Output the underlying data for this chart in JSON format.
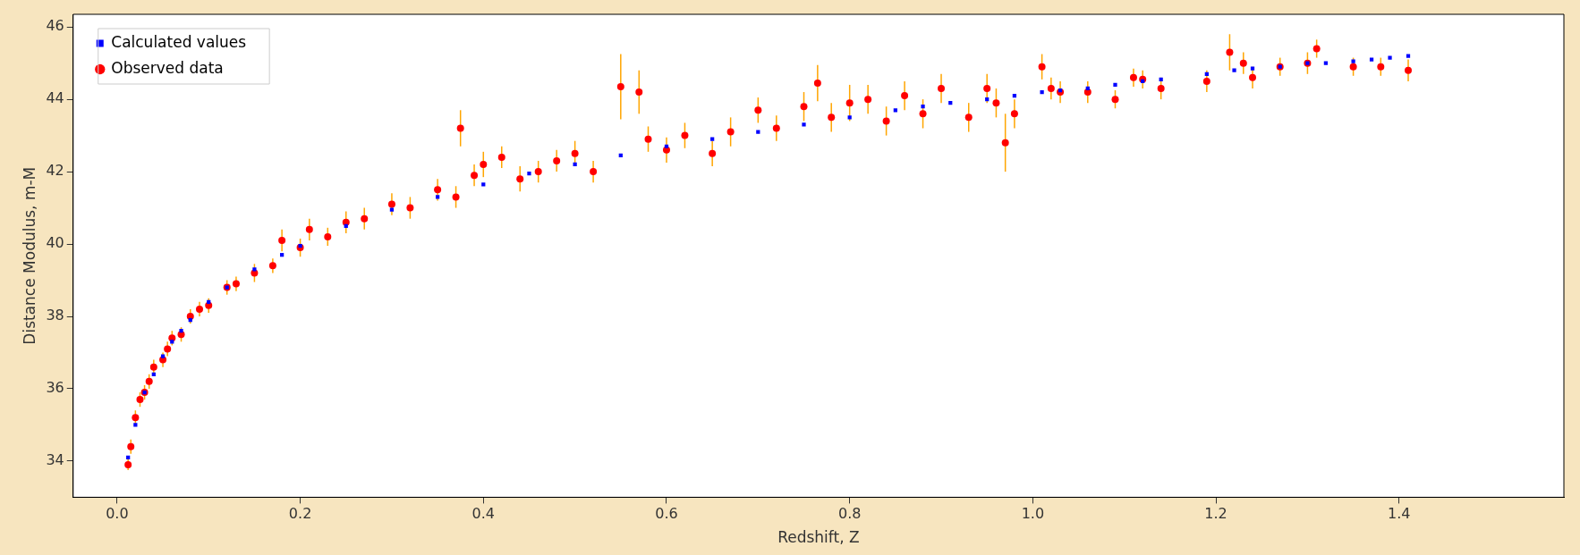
{
  "chart_data": {
    "type": "scatter",
    "xlabel": "Redshift, Z",
    "ylabel": "Distance Modulus, m-M",
    "xlim": [
      -0.048,
      1.58
    ],
    "ylim": [
      33,
      46.35
    ],
    "xticks": [
      {
        "value": 0,
        "label": "0.0"
      },
      {
        "value": 0.2,
        "label": "0.2"
      },
      {
        "value": 0.4,
        "label": "0.4"
      },
      {
        "value": 0.6,
        "label": "0.6"
      },
      {
        "value": 0.8,
        "label": "0.8"
      },
      {
        "value": 1,
        "label": "1.0"
      },
      {
        "value": 1.2,
        "label": "1.2"
      },
      {
        "value": 1.4,
        "label": "1.4"
      }
    ],
    "yticks": [
      34,
      36,
      38,
      40,
      42,
      44,
      46
    ],
    "grid": false,
    "legend": "top left",
    "series": [
      {
        "name": "Calculated values",
        "color": "#0000ff",
        "marker": "square",
        "x": [
          0.012,
          0.02,
          0.03,
          0.04,
          0.05,
          0.06,
          0.07,
          0.08,
          0.1,
          0.12,
          0.15,
          0.18,
          0.2,
          0.25,
          0.3,
          0.35,
          0.4,
          0.45,
          0.5,
          0.55,
          0.6,
          0.65,
          0.7,
          0.75,
          0.8,
          0.85,
          0.88,
          0.91,
          0.95,
          0.98,
          1.01,
          1.03,
          1.06,
          1.09,
          1.12,
          1.14,
          1.19,
          1.22,
          1.24,
          1.27,
          1.3,
          1.32,
          1.35,
          1.37,
          1.39,
          1.41
        ],
        "values": [
          34.1,
          35.0,
          35.9,
          36.4,
          36.9,
          37.3,
          37.6,
          37.9,
          38.4,
          38.8,
          39.3,
          39.7,
          39.95,
          40.5,
          40.95,
          41.3,
          41.65,
          41.95,
          42.2,
          42.45,
          42.7,
          42.9,
          43.1,
          43.3,
          43.5,
          43.7,
          43.8,
          43.9,
          44.0,
          44.1,
          44.2,
          44.25,
          44.3,
          44.4,
          44.5,
          44.55,
          44.7,
          44.8,
          44.85,
          44.9,
          45.0,
          45.0,
          45.05,
          45.1,
          45.15,
          45.2
        ]
      },
      {
        "name": "Observed data",
        "color": "#ff0000",
        "marker": "circle",
        "x": [
          0.012,
          0.015,
          0.02,
          0.025,
          0.03,
          0.035,
          0.04,
          0.05,
          0.055,
          0.06,
          0.07,
          0.08,
          0.09,
          0.1,
          0.12,
          0.13,
          0.15,
          0.17,
          0.18,
          0.2,
          0.21,
          0.23,
          0.25,
          0.27,
          0.3,
          0.32,
          0.35,
          0.37,
          0.375,
          0.39,
          0.4,
          0.42,
          0.44,
          0.46,
          0.48,
          0.5,
          0.52,
          0.55,
          0.57,
          0.58,
          0.6,
          0.62,
          0.65,
          0.67,
          0.7,
          0.72,
          0.75,
          0.765,
          0.78,
          0.8,
          0.82,
          0.84,
          0.86,
          0.88,
          0.9,
          0.93,
          0.95,
          0.96,
          0.97,
          0.98,
          1.01,
          1.02,
          1.03,
          1.06,
          1.09,
          1.11,
          1.12,
          1.14,
          1.19,
          1.215,
          1.23,
          1.24,
          1.27,
          1.3,
          1.31,
          1.35,
          1.38,
          1.41
        ],
        "values": [
          33.9,
          34.4,
          35.2,
          35.7,
          35.9,
          36.2,
          36.6,
          36.8,
          37.1,
          37.4,
          37.5,
          38.0,
          38.2,
          38.3,
          38.8,
          38.9,
          39.2,
          39.4,
          40.1,
          39.9,
          40.4,
          40.2,
          40.6,
          40.7,
          41.1,
          41.0,
          41.5,
          41.3,
          43.2,
          41.9,
          42.2,
          42.4,
          41.8,
          42.0,
          42.3,
          42.5,
          42.0,
          44.35,
          44.2,
          42.9,
          42.6,
          43.0,
          42.5,
          43.1,
          43.7,
          43.2,
          43.8,
          44.45,
          43.5,
          43.9,
          44.0,
          43.4,
          44.1,
          43.6,
          44.3,
          43.5,
          44.3,
          43.9,
          42.8,
          43.6,
          44.9,
          44.3,
          44.2,
          44.2,
          44.0,
          44.6,
          44.55,
          44.3,
          44.5,
          45.3,
          45.0,
          44.6,
          44.9,
          45.0,
          45.4,
          44.9,
          44.9,
          44.8
        ],
        "errors": [
          0.15,
          0.2,
          0.2,
          0.2,
          0.2,
          0.2,
          0.2,
          0.2,
          0.2,
          0.2,
          0.2,
          0.2,
          0.2,
          0.2,
          0.2,
          0.2,
          0.25,
          0.2,
          0.3,
          0.25,
          0.3,
          0.25,
          0.3,
          0.3,
          0.3,
          0.3,
          0.3,
          0.3,
          0.5,
          0.3,
          0.35,
          0.3,
          0.35,
          0.3,
          0.3,
          0.35,
          0.3,
          0.9,
          0.6,
          0.35,
          0.35,
          0.35,
          0.35,
          0.4,
          0.35,
          0.35,
          0.4,
          0.5,
          0.4,
          0.5,
          0.4,
          0.4,
          0.4,
          0.4,
          0.4,
          0.4,
          0.4,
          0.4,
          0.8,
          0.4,
          0.35,
          0.3,
          0.3,
          0.3,
          0.25,
          0.25,
          0.25,
          0.3,
          0.3,
          0.5,
          0.3,
          0.3,
          0.25,
          0.3,
          0.25,
          0.25,
          0.25,
          0.3
        ]
      }
    ]
  }
}
